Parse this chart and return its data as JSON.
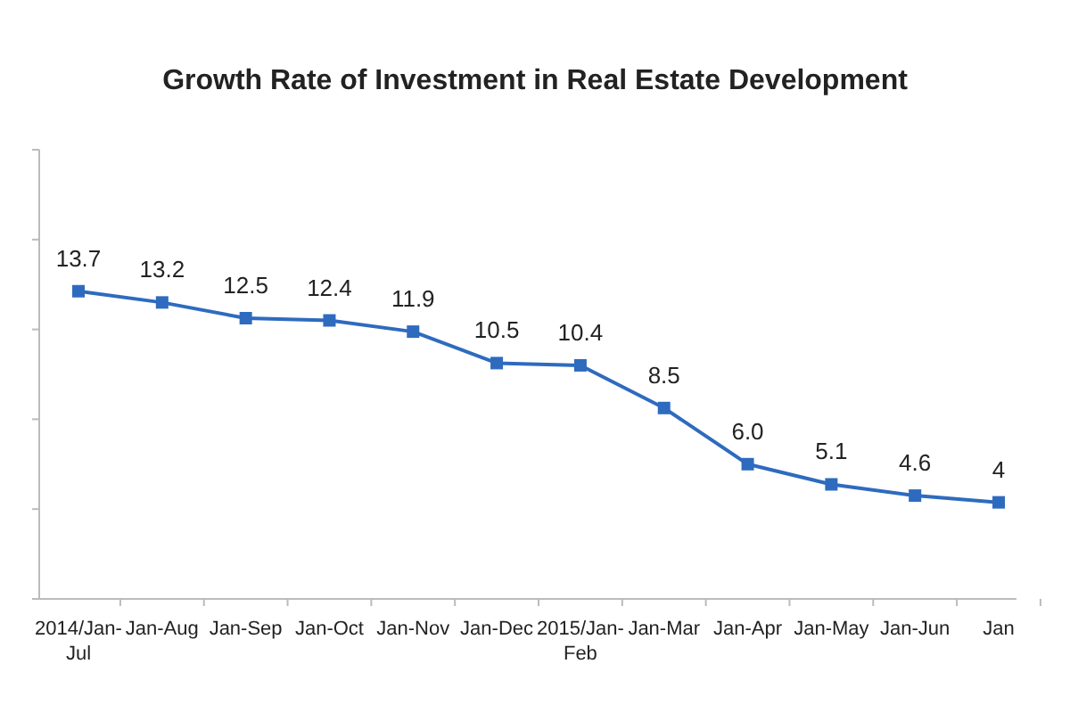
{
  "chart_data": {
    "type": "line",
    "title": "Growth Rate of Investment in Real Estate Development",
    "categories": [
      "2014/Jan-Jul",
      "Jan-Aug",
      "Jan-Sep",
      "Jan-Oct",
      "Jan-Nov",
      "Jan-Dec",
      "2015/Jan-Feb",
      "Jan-Mar",
      "Jan-Apr",
      "Jan-May",
      "Jan-Jun",
      "Jan"
    ],
    "series": [
      {
        "color": "#2e6bbf",
        "values": [
          13.7,
          13.2,
          12.5,
          12.4,
          11.9,
          10.5,
          10.4,
          8.5,
          6.0,
          5.1,
          4.6,
          4.3
        ],
        "value_labels": [
          "13.7",
          "13.2",
          "12.5",
          "12.4",
          "11.9",
          "10.5",
          "10.4",
          "8.5",
          "6.0",
          "5.1",
          "4.6",
          "4"
        ]
      }
    ],
    "ylim": [
      0,
      20
    ],
    "yticks": [
      {
        "value": 0,
        "label": null
      },
      {
        "value": 4,
        "label": null
      },
      {
        "value": 8,
        "label": null
      },
      {
        "value": 12,
        "label": null
      },
      {
        "value": 16,
        "label": null
      },
      {
        "value": 20,
        "label": null
      }
    ],
    "tick_labels": "x",
    "marker": "square",
    "line_style": "solid",
    "grid": false
  }
}
